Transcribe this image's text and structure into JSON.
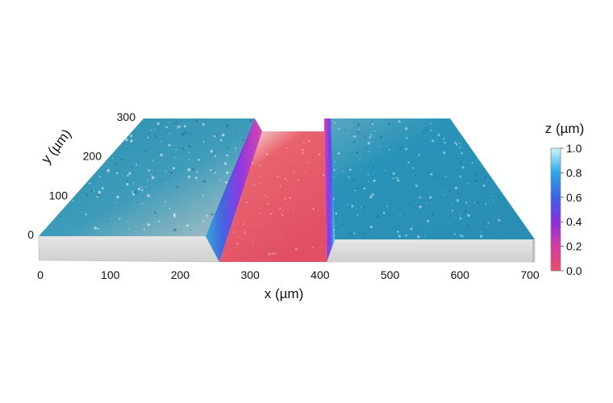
{
  "chart_data": {
    "type": "surface3d",
    "title": "",
    "xlabel": "x (µm)",
    "ylabel": "y (µm)",
    "zlabel": "z (µm)",
    "xlim": [
      0,
      700
    ],
    "ylim": [
      0,
      300
    ],
    "zlim": [
      0.0,
      1.0
    ],
    "x_ticks": [
      "0",
      "100",
      "200",
      "300",
      "400",
      "500",
      "600",
      "700"
    ],
    "y_ticks": [
      "0",
      "100",
      "200",
      "300"
    ],
    "colorbar_ticks": [
      "0.0",
      "0.2",
      "0.4",
      "0.6",
      "0.8",
      "1.0"
    ],
    "colormap": [
      "#e84e6e",
      "#d83aa2",
      "#8a2ee0",
      "#3c62e8",
      "#2aa8e6",
      "#aef2ff"
    ],
    "surface": {
      "channel_x_range": [
        265,
        405
      ],
      "plateau_height": 1.0,
      "channel_height": 0.0,
      "plateau_color": "#2a8fb0",
      "channel_color": "#e6616f"
    }
  }
}
